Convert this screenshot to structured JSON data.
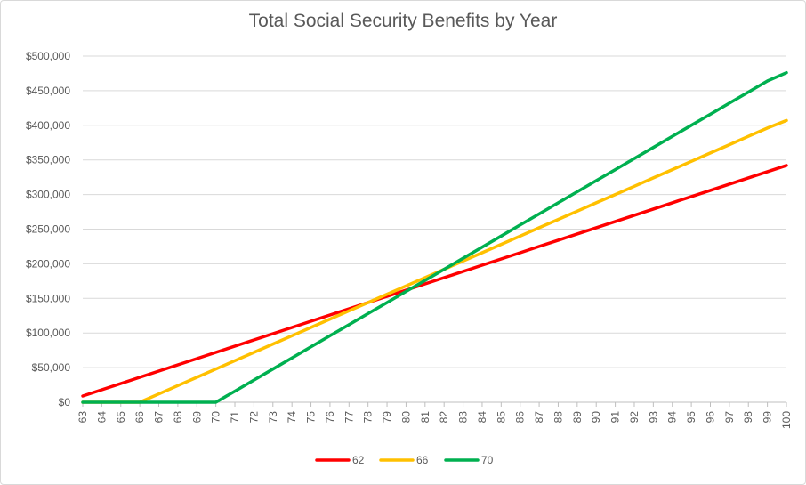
{
  "chart_data": {
    "type": "line",
    "title": "Total Social Security Benefits by Year",
    "xlabel": "",
    "ylabel": "",
    "x": [
      63,
      64,
      65,
      66,
      67,
      68,
      69,
      70,
      71,
      72,
      73,
      74,
      75,
      76,
      77,
      78,
      79,
      80,
      81,
      82,
      83,
      84,
      85,
      86,
      87,
      88,
      89,
      90,
      91,
      92,
      93,
      94,
      95,
      96,
      97,
      98,
      99,
      100
    ],
    "ylim": [
      0,
      500000
    ],
    "yticks": [
      0,
      50000,
      100000,
      150000,
      200000,
      250000,
      300000,
      350000,
      400000,
      450000,
      500000
    ],
    "ytick_labels": [
      "$0",
      "$50,000",
      "$100,000",
      "$150,000",
      "$200,000",
      "$250,000",
      "$300,000",
      "$350,000",
      "$400,000",
      "$450,000",
      "$500,000"
    ],
    "grid": true,
    "legend_position": "bottom",
    "series": [
      {
        "name": "62",
        "color": "#ff0000",
        "values": [
          9000,
          18000,
          27000,
          36000,
          45000,
          54000,
          63000,
          72000,
          81000,
          90000,
          99000,
          108000,
          117000,
          126000,
          135000,
          144000,
          153000,
          162000,
          171000,
          180000,
          189000,
          198000,
          207000,
          216000,
          225000,
          234000,
          243000,
          252000,
          261000,
          270000,
          279000,
          288000,
          297000,
          306000,
          315000,
          324000,
          333000,
          342000
        ]
      },
      {
        "name": "66",
        "color": "#ffc000",
        "values": [
          0,
          0,
          0,
          0,
          12000,
          24000,
          36000,
          48000,
          60000,
          72000,
          84000,
          96000,
          108000,
          120000,
          132000,
          144000,
          156000,
          168000,
          180000,
          192000,
          204000,
          216000,
          228000,
          240000,
          252000,
          264000,
          276000,
          288000,
          300000,
          312000,
          324000,
          336000,
          348000,
          360000,
          372000,
          384000,
          396000,
          407000
        ]
      },
      {
        "name": "70",
        "color": "#00b050",
        "values": [
          0,
          0,
          0,
          0,
          0,
          0,
          0,
          0,
          16000,
          32000,
          48000,
          64000,
          80000,
          96000,
          112000,
          128000,
          144000,
          160000,
          176000,
          192000,
          208000,
          224000,
          240000,
          256000,
          272000,
          288000,
          304000,
          320000,
          336000,
          352000,
          368000,
          384000,
          400000,
          416000,
          432000,
          448000,
          464000,
          476000
        ]
      }
    ]
  }
}
